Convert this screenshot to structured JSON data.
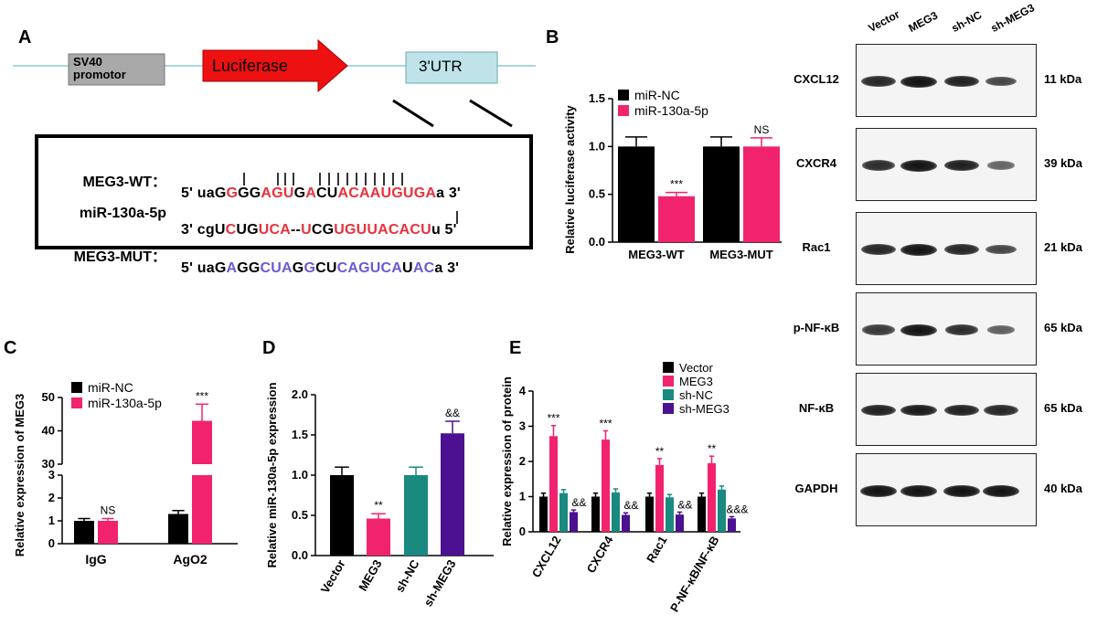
{
  "panels": {
    "A": "A",
    "B": "B",
    "C": "C",
    "D": "D",
    "E": "E"
  },
  "panelA": {
    "promoter": "SV40\npromotor",
    "luciferase": "Luciferase",
    "utr": "3'UTR",
    "rows": [
      {
        "name": "MEG3-WT：",
        "prefix": "5' uaG",
        "seq": [
          [
            "r",
            "G"
          ],
          [
            "k",
            "GG"
          ],
          [
            "r",
            "AGU"
          ],
          [
            "k",
            "G"
          ],
          [
            "r",
            "A"
          ],
          [
            "k",
            "CU"
          ],
          [
            "r",
            "ACAAUGUGA"
          ]
        ],
        "suffix": "a 3'"
      },
      {
        "name": "miR-130a-5p",
        "prefix": "3' cgU",
        "seq": [
          [
            "r",
            "C"
          ],
          [
            "k",
            "UG"
          ],
          [
            "r",
            "UCA"
          ],
          [
            "k",
            "--"
          ],
          [
            "r",
            "U"
          ],
          [
            "k",
            "CG"
          ],
          [
            "r",
            "UGUUACACU"
          ]
        ],
        "suffix": "u 5'"
      },
      {
        "name": "MEG3-MUT：",
        "prefix": "5' uaG",
        "seq": [
          [
            "b",
            "A"
          ],
          [
            "k",
            "GG"
          ],
          [
            "b",
            "CUA"
          ],
          [
            "k",
            "G"
          ],
          [
            "b",
            "G"
          ],
          [
            "k",
            "CU"
          ],
          [
            "b",
            "CAGUCA"
          ],
          [
            "k",
            "U"
          ],
          [
            "b",
            "AC"
          ]
        ],
        "suffix": "a 3'"
      }
    ]
  },
  "colors": {
    "black": "#000000",
    "pink": "#f2236e",
    "teal": "#1a8a80",
    "purple": "#4b1190",
    "seq_red": "#e8323c",
    "seq_blue": "#6a5ad6",
    "utr_fill": "#bfe3e8",
    "promoter_fill": "#a9a9a9",
    "arrow_red": "#ee1111"
  },
  "chart_data": [
    {
      "id": "B",
      "type": "bar",
      "categories": [
        "MEG3-WT",
        "MEG3-MUT"
      ],
      "series": [
        {
          "name": "miR-NC",
          "values": [
            1.0,
            1.0
          ],
          "err": [
            0.1,
            0.1
          ]
        },
        {
          "name": "miR-130a-5p",
          "values": [
            0.48,
            1.0
          ],
          "err": [
            0.04,
            0.09
          ]
        }
      ],
      "annotations": [
        {
          "cat": 0,
          "series": 1,
          "text": "***"
        },
        {
          "cat": 1,
          "series": 1,
          "text": "NS"
        }
      ],
      "ylabel": "Relative luciferase activity",
      "ylim": [
        0,
        1.5
      ],
      "yticks": [
        "0.0",
        "0.5",
        "1.0",
        "1.5"
      ]
    },
    {
      "id": "C",
      "type": "bar",
      "categories": [
        "IgG",
        "AgO2"
      ],
      "series": [
        {
          "name": "miR-NC",
          "values": [
            1.0,
            1.3
          ],
          "err": [
            0.1,
            0.15
          ]
        },
        {
          "name": "miR-130a-5p",
          "values": [
            1.0,
            43
          ],
          "err": [
            0.1,
            5
          ]
        }
      ],
      "annotations": [
        {
          "cat": 0,
          "series": 1,
          "text": "NS"
        },
        {
          "cat": 1,
          "series": 1,
          "text": "***"
        }
      ],
      "ylabel": "Relative expression of MEG3",
      "broken_axis": true,
      "yticks_low": [
        "0",
        "1",
        "2",
        "3"
      ],
      "yticks_high": [
        "30",
        "40",
        "50"
      ]
    },
    {
      "id": "D",
      "type": "bar",
      "categories": [
        "Vector",
        "MEG3",
        "sh-NC",
        "sh-MEG3"
      ],
      "values": [
        1.0,
        0.46,
        1.0,
        1.52
      ],
      "err": [
        0.1,
        0.06,
        0.1,
        0.15
      ],
      "annotations": [
        {
          "cat": 1,
          "text": "**"
        },
        {
          "cat": 3,
          "text": "&&"
        }
      ],
      "ylabel": "Relative miR-130a-5p expression",
      "ylim": [
        0,
        2.0
      ],
      "yticks": [
        "0.0",
        "0.5",
        "1.0",
        "1.5",
        "2.0"
      ]
    },
    {
      "id": "E",
      "type": "bar",
      "categories": [
        "CXCL12",
        "CXCR4",
        "Rac1",
        "P-NF-κB/NF-κB"
      ],
      "series": [
        {
          "name": "Vector",
          "values": [
            1.0,
            1.0,
            1.0,
            1.0
          ],
          "err": [
            0.1,
            0.1,
            0.1,
            0.1
          ]
        },
        {
          "name": "MEG3",
          "values": [
            2.72,
            2.62,
            1.9,
            1.95
          ],
          "err": [
            0.3,
            0.25,
            0.18,
            0.2
          ]
        },
        {
          "name": "sh-NC",
          "values": [
            1.1,
            1.12,
            0.98,
            1.2
          ],
          "err": [
            0.1,
            0.1,
            0.08,
            0.1
          ]
        },
        {
          "name": "sh-MEG3",
          "values": [
            0.56,
            0.48,
            0.49,
            0.38
          ],
          "err": [
            0.06,
            0.06,
            0.07,
            0.05
          ]
        }
      ],
      "annotations": [
        {
          "cat": 0,
          "series": 1,
          "text": "***"
        },
        {
          "cat": 0,
          "series": 3,
          "text": "&&"
        },
        {
          "cat": 1,
          "series": 1,
          "text": "***"
        },
        {
          "cat": 1,
          "series": 3,
          "text": "&&"
        },
        {
          "cat": 2,
          "series": 1,
          "text": "**"
        },
        {
          "cat": 2,
          "series": 3,
          "text": "&&"
        },
        {
          "cat": 3,
          "series": 1,
          "text": "**"
        },
        {
          "cat": 3,
          "series": 3,
          "text": "&&&"
        }
      ],
      "ylabel": "Relative expression of  protein",
      "ylim": [
        0,
        4
      ],
      "yticks": [
        "0",
        "1",
        "2",
        "3",
        "4"
      ]
    }
  ],
  "westernBlot": {
    "lanes": [
      "Vector",
      "MEG3",
      "sh-NC",
      "sh-MEG3"
    ],
    "blots": [
      {
        "name": "CXCL12",
        "kda": "11 kDa",
        "intensity": [
          0.85,
          1.0,
          0.9,
          0.6
        ]
      },
      {
        "name": "CXCR4",
        "kda": "39 kDa",
        "intensity": [
          0.8,
          1.0,
          0.9,
          0.35
        ]
      },
      {
        "name": "Rac1",
        "kda": "21 kDa",
        "intensity": [
          0.85,
          1.0,
          0.85,
          0.6
        ]
      },
      {
        "name": "p-NF-κB",
        "kda": "65 kDa",
        "intensity": [
          0.7,
          1.0,
          0.8,
          0.4
        ]
      },
      {
        "name": "NF-κB",
        "kda": "65 kDa",
        "intensity": [
          0.9,
          0.95,
          0.9,
          0.85
        ]
      },
      {
        "name": "GAPDH",
        "kda": "40 kDa",
        "intensity": [
          1.0,
          1.0,
          1.0,
          1.0
        ]
      }
    ]
  }
}
